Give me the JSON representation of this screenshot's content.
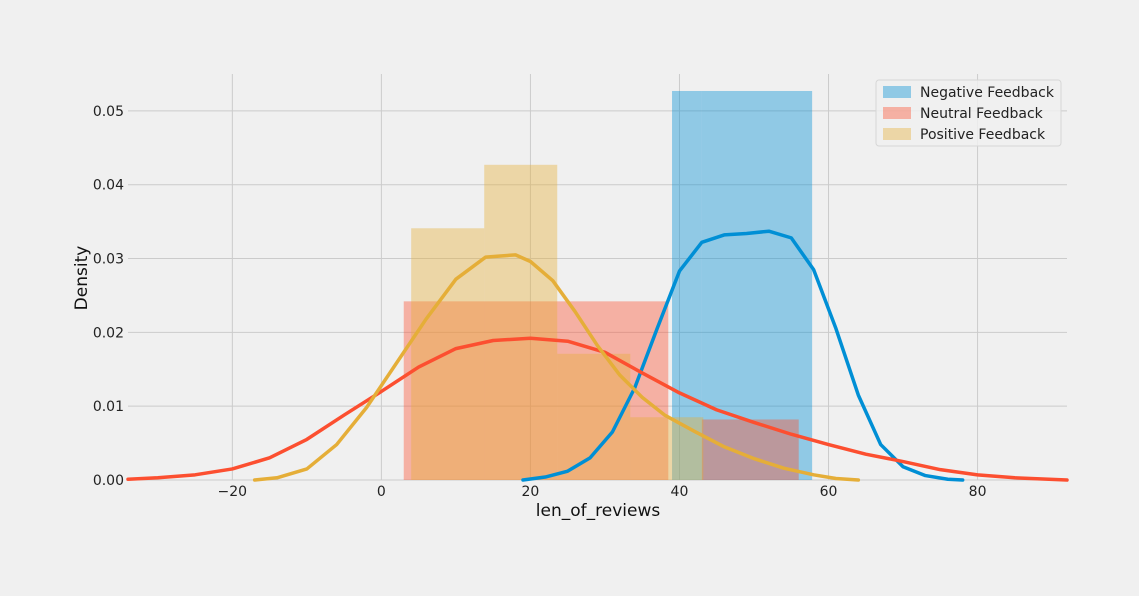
{
  "chart_data": {
    "type": "histogram",
    "xlabel": "len_of_reviews",
    "ylabel": "Density",
    "xlim": [
      -34,
      92
    ],
    "ylim": [
      0,
      0.055
    ],
    "grid": true,
    "legend_position": "top-right",
    "x_ticks": [
      -20,
      0,
      20,
      40,
      60,
      80
    ],
    "x_tick_labels": [
      "−20",
      "0",
      "20",
      "40",
      "60",
      "80"
    ],
    "y_ticks": [
      0.0,
      0.01,
      0.02,
      0.03,
      0.04,
      0.05
    ],
    "y_tick_labels": [
      "0.00",
      "0.01",
      "0.02",
      "0.03",
      "0.04",
      "0.05"
    ],
    "series": [
      {
        "name": "Negative Feedback",
        "color": "#008fd5",
        "bins": [
          {
            "x0": 39.0,
            "x1": 43.0,
            "density": 0.0527
          },
          {
            "x0": 43.0,
            "x1": 57.8,
            "density": 0.0527
          }
        ],
        "kde": {
          "x": [
            19,
            22,
            25,
            28,
            31,
            34,
            37,
            40,
            43,
            46,
            49,
            52,
            55,
            58,
            61,
            64,
            67,
            70,
            73,
            76,
            78
          ],
          "y": [
            0.0,
            0.0004,
            0.0012,
            0.003,
            0.0065,
            0.0125,
            0.0205,
            0.0283,
            0.0322,
            0.0332,
            0.0334,
            0.0337,
            0.0328,
            0.0285,
            0.0205,
            0.0115,
            0.0048,
            0.0018,
            0.0006,
            0.0001,
            0.0
          ]
        }
      },
      {
        "name": "Neutral Feedback",
        "color": "#fc4f30",
        "bins": [
          {
            "x0": 3.0,
            "x1": 38.5,
            "density": 0.0242
          },
          {
            "x0": 43.0,
            "x1": 56.0,
            "density": 0.0082
          }
        ],
        "kde": {
          "x": [
            -34,
            -30,
            -25,
            -20,
            -15,
            -10,
            -5,
            0,
            5,
            10,
            15,
            20,
            25,
            30,
            35,
            40,
            45,
            50,
            55,
            60,
            65,
            70,
            75,
            80,
            85,
            92
          ],
          "y": [
            0.0001,
            0.0003,
            0.0007,
            0.0015,
            0.003,
            0.0055,
            0.0088,
            0.012,
            0.0153,
            0.0178,
            0.0189,
            0.0192,
            0.0188,
            0.0173,
            0.0145,
            0.0118,
            0.0095,
            0.0078,
            0.0062,
            0.0048,
            0.0035,
            0.0025,
            0.0014,
            0.0007,
            0.0003,
            0.0
          ]
        }
      },
      {
        "name": "Positive Feedback",
        "color": "#e5ae38",
        "bins": [
          {
            "x0": 4.0,
            "x1": 13.8,
            "density": 0.0341
          },
          {
            "x0": 13.8,
            "x1": 23.6,
            "density": 0.0427
          },
          {
            "x0": 23.6,
            "x1": 33.4,
            "density": 0.0171
          },
          {
            "x0": 33.4,
            "x1": 43.2,
            "density": 0.0085
          }
        ],
        "kde": {
          "x": [
            -17,
            -14,
            -10,
            -6,
            -2,
            2,
            6,
            10,
            14,
            18,
            20,
            23,
            26,
            29,
            32,
            35,
            38,
            42,
            46,
            50,
            54,
            58,
            61,
            64
          ],
          "y": [
            0.0,
            0.0003,
            0.0015,
            0.0048,
            0.0098,
            0.0158,
            0.0218,
            0.0272,
            0.0302,
            0.0305,
            0.0296,
            0.027,
            0.0228,
            0.0182,
            0.0142,
            0.0112,
            0.0088,
            0.0066,
            0.0045,
            0.0029,
            0.0016,
            0.0007,
            0.0002,
            0.0
          ]
        }
      }
    ]
  }
}
